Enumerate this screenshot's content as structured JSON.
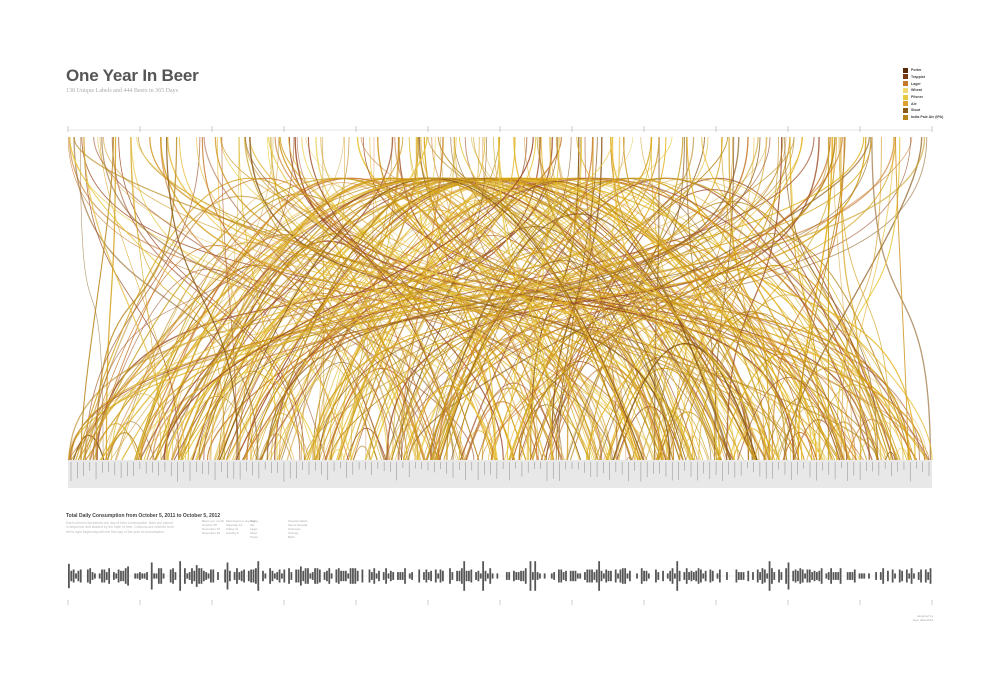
{
  "poster": {
    "title": "One Year In Beer",
    "subtitle": "138 Unique Labels and 444 Beers in 365 Days",
    "bottom_title": "Total Daily Consumption from October 5, 2011 to October 5, 2012",
    "bottom_description": "Each column represents one day of beer consumption. Bars are placed in sequence and shaded by the style of beer. Columns are ordered from left to right beginning with the first day of the year of consumption."
  },
  "legend": [
    {
      "label": "Porter",
      "color": "#5a2a0a"
    },
    {
      "label": "Trappist",
      "color": "#7a3b12"
    },
    {
      "label": "Lager",
      "color": "#c8782a"
    },
    {
      "label": "Wheat",
      "color": "#f0d870"
    },
    {
      "label": "Pilsner",
      "color": "#e8c840"
    },
    {
      "label": "Ale",
      "color": "#e0a030"
    },
    {
      "label": "Stout",
      "color": "#8a5a1a"
    },
    {
      "label": "India Pale Ale (IPA)",
      "color": "#b8861a"
    }
  ],
  "palette": [
    "#d4a017",
    "#e0b830",
    "#c8782a",
    "#b8861a",
    "#e8c840",
    "#a0522d",
    "#8a5a1a",
    "#d29a28",
    "#c9a227",
    "#e6b422"
  ],
  "bar_color": "#555555",
  "month_tick_count": 13,
  "bottom_bar_count": 365,
  "note_columns": [
    [
      "Beers per month",
      "October 38",
      "November 34",
      "December 29"
    ],
    [
      "Most beers in one day",
      "Saturday 14",
      "Friday 11",
      "Sunday 9"
    ],
    [
      "Styles",
      "Ale",
      "Lager",
      "Stout",
      "Porter"
    ],
    [
      "Favorite labels",
      "Sierra Nevada",
      "Guinness",
      "Chimay",
      "Bell's"
    ]
  ],
  "credit": [
    "designed by",
    "beer data 2012"
  ]
}
